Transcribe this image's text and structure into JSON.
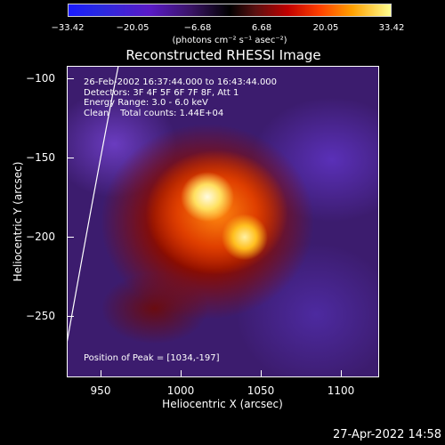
{
  "colorbar": {
    "ticks": [
      "−33.42",
      "−20.05",
      "−6.68",
      "6.68",
      "20.05",
      "33.42"
    ],
    "unit_label": "(photons cm⁻² s⁻¹ asec⁻²)",
    "colors": [
      "#1a1aff",
      "#5a1ac8",
      "#000000",
      "#c00000",
      "#ffa000",
      "#ffff90"
    ]
  },
  "image": {
    "title": "Reconstructed RHESSI Image",
    "info_lines": [
      "26-Feb-2002 16:37:44.000 to 16:43:44.000",
      "Detectors: 3F 4F 5F 6F 7F 8F, Att 1",
      "Energy Range: 3.0 - 6.0 keV",
      "Clean    Total counts: 1.44E+04"
    ],
    "peak_label": "Position of Peak = [1034,-197]"
  },
  "axes": {
    "x_label": "Heliocentric X (arcsec)",
    "y_label": "Heliocentric Y (arcsec)",
    "x_ticks": [
      "950",
      "1000",
      "1050",
      "1100"
    ],
    "y_ticks": [
      "−100",
      "−150",
      "−200",
      "−250"
    ],
    "x_range": [
      930,
      1125
    ],
    "y_range": [
      -88,
      -285
    ]
  },
  "footer": {
    "date": "27-Apr-2022 14:58"
  }
}
